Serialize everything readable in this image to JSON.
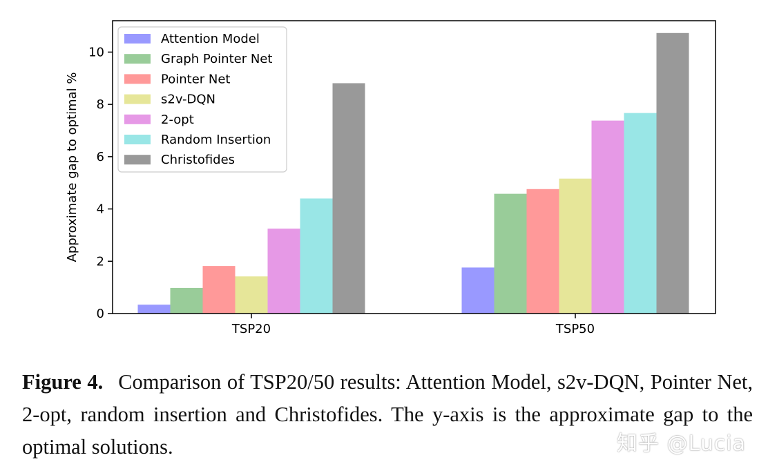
{
  "chart_data": {
    "type": "bar",
    "categories": [
      "TSP20",
      "TSP50"
    ],
    "series": [
      {
        "name": "Attention Model",
        "values": [
          0.34,
          1.76
        ],
        "color": "#9999ff"
      },
      {
        "name": "Graph Pointer Net",
        "values": [
          0.98,
          4.58
        ],
        "color": "#99cc99"
      },
      {
        "name": "Pointer Net",
        "values": [
          1.82,
          4.76
        ],
        "color": "#ff9999"
      },
      {
        "name": "s2v-DQN",
        "values": [
          1.42,
          5.16
        ],
        "color": "#e6e699"
      },
      {
        "name": "2-opt",
        "values": [
          3.25,
          7.38
        ],
        "color": "#e699e6"
      },
      {
        "name": "Random Insertion",
        "values": [
          4.4,
          7.67
        ],
        "color": "#99e6e6"
      },
      {
        "name": "Christofides",
        "values": [
          8.81,
          10.73
        ],
        "color": "#999999"
      }
    ],
    "ylabel": "Approximate gap to optimal %",
    "xlabel": "",
    "ylim": [
      0,
      11.2
    ],
    "yticks": [
      0,
      2,
      4,
      6,
      8,
      10
    ],
    "legend": "top-left",
    "grid": false
  },
  "caption": {
    "label": "Figure 4.",
    "text": "Comparison of TSP20/50 results: Attention Model, s2v-DQN, Pointer Net, 2-opt, random insertion and Christofides. The y-axis is the approximate gap to the optimal solutions."
  },
  "watermark": "知乎 @Lucia"
}
